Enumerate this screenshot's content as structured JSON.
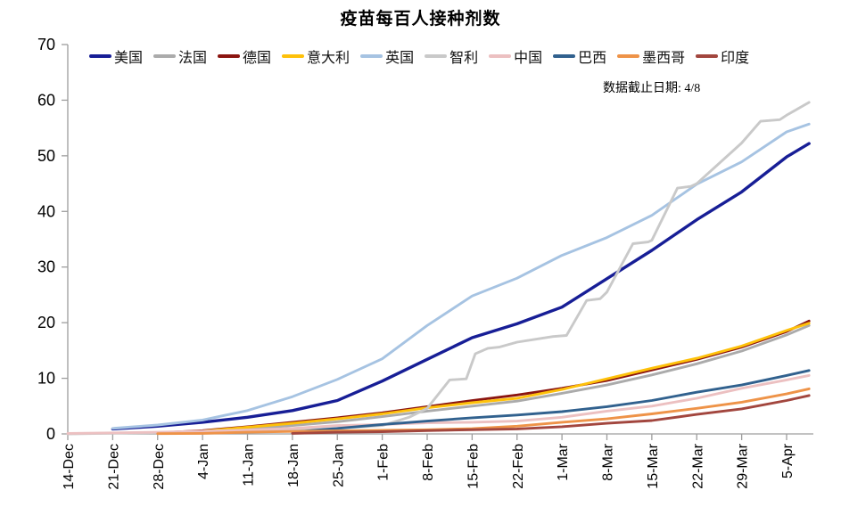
{
  "chart_data": {
    "type": "line",
    "title": "疫苗每百人接种剂数",
    "annotation": "数据截止日期: 4/8",
    "ylabel": "",
    "xlabel": "",
    "ylim": [
      0,
      70
    ],
    "y_ticks": [
      0,
      10,
      20,
      30,
      40,
      50,
      60,
      70
    ],
    "grid": false,
    "legend_position": "top",
    "x_tick_labels": [
      "14-Dec",
      "21-Dec",
      "28-Dec",
      "4-Jan",
      "11-Jan",
      "18-Jan",
      "25-Jan",
      "1-Feb",
      "8-Feb",
      "15-Feb",
      "22-Feb",
      "1-Mar",
      "8-Mar",
      "15-Mar",
      "22-Mar",
      "29-Mar",
      "5-Apr"
    ],
    "x_default": [
      0,
      1,
      2,
      3,
      4,
      5,
      6,
      7,
      8,
      9,
      10,
      11,
      12,
      13,
      14,
      15,
      16,
      16.5
    ],
    "x_unit": "weekly index from 14-Dec; 16.5 = 8-Apr (data cutoff)",
    "series": [
      {
        "name": "美国",
        "color": "#171e96",
        "values": [
          null,
          0.9,
          1.4,
          2.1,
          3.0,
          4.2,
          6.0,
          9.5,
          13.4,
          17.3,
          19.8,
          22.8,
          27.9,
          33.0,
          38.5,
          43.5,
          49.8,
          52.2
        ]
      },
      {
        "name": "法国",
        "color": "#ababab",
        "values": [
          null,
          null,
          0.1,
          0.4,
          0.9,
          1.5,
          2.2,
          3.1,
          4.1,
          5.0,
          5.9,
          7.3,
          8.8,
          10.6,
          12.6,
          14.9,
          17.8,
          19.5
        ]
      },
      {
        "name": "德国",
        "color": "#8b1510",
        "values": [
          null,
          null,
          0.2,
          0.6,
          1.3,
          2.1,
          2.9,
          3.8,
          4.9,
          6.0,
          7.0,
          8.2,
          9.6,
          11.5,
          13.4,
          15.6,
          18.4,
          20.3
        ]
      },
      {
        "name": "意大利",
        "color": "#fec10a",
        "values": [
          null,
          null,
          0.1,
          0.5,
          1.2,
          1.9,
          2.7,
          3.6,
          4.7,
          5.6,
          6.4,
          8.0,
          9.9,
          11.8,
          13.6,
          15.8,
          18.6,
          19.9
        ]
      },
      {
        "name": "英国",
        "color": "#a6c3e2",
        "values": [
          null,
          1.0,
          1.6,
          2.5,
          4.2,
          6.7,
          9.8,
          13.5,
          19.5,
          24.8,
          28.0,
          32.1,
          35.3,
          39.3,
          44.9,
          48.9,
          54.3,
          55.7
        ]
      },
      {
        "name": "智利",
        "color": "#c9c9c9",
        "x": [
          0,
          4,
          6,
          7,
          7.6,
          8.0,
          8.5,
          8.87,
          9.07,
          9.35,
          9.6,
          10,
          10.8,
          11.1,
          11.55,
          11.85,
          12,
          12.58,
          12.92,
          13,
          13.57,
          13.87,
          14,
          15,
          15.42,
          15.85,
          16,
          16.5
        ],
        "values": [
          0,
          0.5,
          1.0,
          1.5,
          3.0,
          4.6,
          9.7,
          9.9,
          14.4,
          15.4,
          15.6,
          16.5,
          17.5,
          17.7,
          24.0,
          24.3,
          25.5,
          34.2,
          34.5,
          34.8,
          44.2,
          44.5,
          45.0,
          52.3,
          56.2,
          56.5,
          57.3,
          59.6
        ]
      },
      {
        "name": "中国",
        "color": "#ecc0c1",
        "values": [
          0.1,
          0.2,
          0.3,
          0.5,
          0.7,
          1.0,
          1.5,
          1.7,
          2.0,
          2.1,
          2.3,
          3.0,
          4.1,
          5.0,
          6.4,
          8.2,
          9.7,
          10.5
        ]
      },
      {
        "name": "巴西",
        "color": "#31618e",
        "values": [
          null,
          null,
          null,
          null,
          null,
          0.3,
          1.0,
          1.7,
          2.3,
          2.9,
          3.4,
          4.0,
          4.9,
          6.0,
          7.5,
          8.8,
          10.5,
          11.4
        ]
      },
      {
        "name": "墨西哥",
        "color": "#ee9348",
        "values": [
          null,
          null,
          0.05,
          0.1,
          0.3,
          0.45,
          0.55,
          0.65,
          0.75,
          0.95,
          1.4,
          2.1,
          2.7,
          3.6,
          4.6,
          5.7,
          7.2,
          8.1
        ]
      },
      {
        "name": "印度",
        "color": "#a2463e",
        "values": [
          null,
          null,
          null,
          null,
          null,
          0.1,
          0.3,
          0.4,
          0.6,
          0.75,
          0.9,
          1.3,
          1.9,
          2.4,
          3.5,
          4.5,
          6.0,
          6.9
        ]
      }
    ]
  }
}
